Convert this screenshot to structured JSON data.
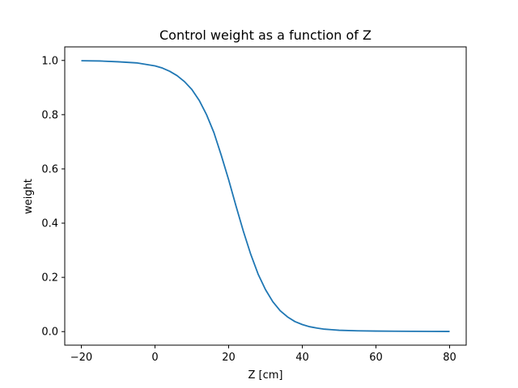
{
  "chart_data": {
    "type": "line",
    "title": "Control weight as a function of Z",
    "xlabel": "Z [cm]",
    "ylabel": "weight",
    "xlim": [
      -24.5,
      84.5
    ],
    "ylim": [
      -0.05,
      1.05
    ],
    "xticks": [
      -20,
      0,
      20,
      40,
      60,
      80
    ],
    "xtick_labels": [
      "−20",
      "0",
      "20",
      "40",
      "60",
      "80"
    ],
    "yticks": [
      0.0,
      0.2,
      0.4,
      0.6,
      0.8,
      1.0
    ],
    "ytick_labels": [
      "0.0",
      "0.2",
      "0.4",
      "0.6",
      "0.8",
      "1.0"
    ],
    "grid": false,
    "series": [
      {
        "color": "#1f77b4",
        "x": [
          -20,
          -15,
          -10,
          -5,
          0,
          2,
          4,
          6,
          8,
          10,
          12,
          14,
          16,
          18,
          20,
          22,
          24,
          26,
          28,
          30,
          32,
          34,
          36,
          38,
          40,
          42,
          44,
          46,
          48,
          50,
          55,
          60,
          65,
          70,
          75,
          80
        ],
        "y": [
          0.999,
          0.998,
          0.995,
          0.991,
          0.98,
          0.972,
          0.96,
          0.944,
          0.922,
          0.893,
          0.853,
          0.8,
          0.734,
          0.65,
          0.56,
          0.463,
          0.37,
          0.285,
          0.212,
          0.155,
          0.11,
          0.077,
          0.054,
          0.037,
          0.026,
          0.018,
          0.013,
          0.009,
          0.007,
          0.005,
          0.003,
          0.002,
          0.0015,
          0.001,
          0.0007,
          0.0005
        ]
      }
    ]
  }
}
